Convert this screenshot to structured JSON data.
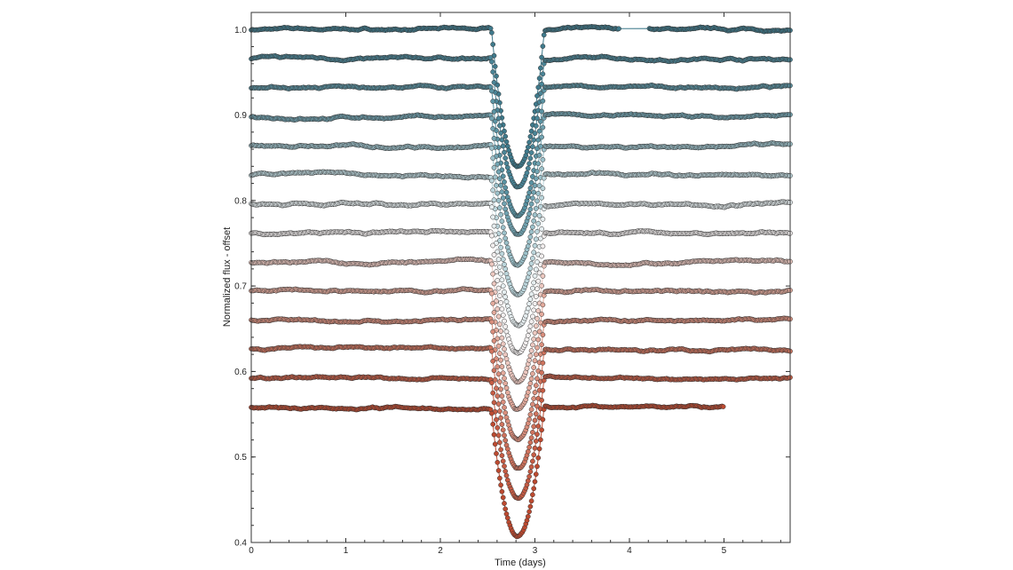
{
  "chart_data": {
    "type": "scatter",
    "title": "",
    "xlabel": "Time (days)",
    "ylabel": "Normalized flux - offset",
    "xlim": [
      0,
      5.7
    ],
    "ylim": [
      0.4,
      1.02
    ],
    "xticks": [
      "0",
      "1",
      "2",
      "3",
      "4",
      "5"
    ],
    "yticks": [
      "0.4",
      "0.5",
      "0.6",
      "0.7",
      "0.8",
      "0.9",
      "1.0"
    ],
    "grid": false,
    "legend": "none",
    "transit_center_days": 2.82,
    "series": [
      {
        "baseline": 1.0,
        "depth": 0.16,
        "color": "#3f7a8c",
        "end": 5.7,
        "gap": [
          3.9,
          4.2
        ]
      },
      {
        "baseline": 0.966,
        "depth": 0.15,
        "color": "#4a8597",
        "end": 5.7
      },
      {
        "baseline": 0.932,
        "depth": 0.15,
        "color": "#5a93a3",
        "end": 5.7
      },
      {
        "baseline": 0.898,
        "depth": 0.14,
        "color": "#72a4b2",
        "end": 5.7
      },
      {
        "baseline": 0.864,
        "depth": 0.14,
        "color": "#9cc1ca",
        "end": 5.7
      },
      {
        "baseline": 0.83,
        "depth": 0.14,
        "color": "#bcd6dc",
        "end": 5.7
      },
      {
        "baseline": 0.796,
        "depth": 0.14,
        "color": "#e6eef0",
        "end": 5.7
      },
      {
        "baseline": 0.762,
        "depth": 0.14,
        "color": "#f2eeee",
        "end": 5.7
      },
      {
        "baseline": 0.728,
        "depth": 0.14,
        "color": "#ecc8c0",
        "end": 5.7
      },
      {
        "baseline": 0.694,
        "depth": 0.14,
        "color": "#e3aa9c",
        "end": 5.7
      },
      {
        "baseline": 0.66,
        "depth": 0.14,
        "color": "#d98e7c",
        "end": 5.7
      },
      {
        "baseline": 0.626,
        "depth": 0.14,
        "color": "#cf735d",
        "end": 5.7
      },
      {
        "baseline": 0.592,
        "depth": 0.14,
        "color": "#c65c44",
        "end": 5.7
      },
      {
        "baseline": 0.558,
        "depth": 0.15,
        "color": "#bd4a30",
        "end": 5.0
      }
    ]
  }
}
